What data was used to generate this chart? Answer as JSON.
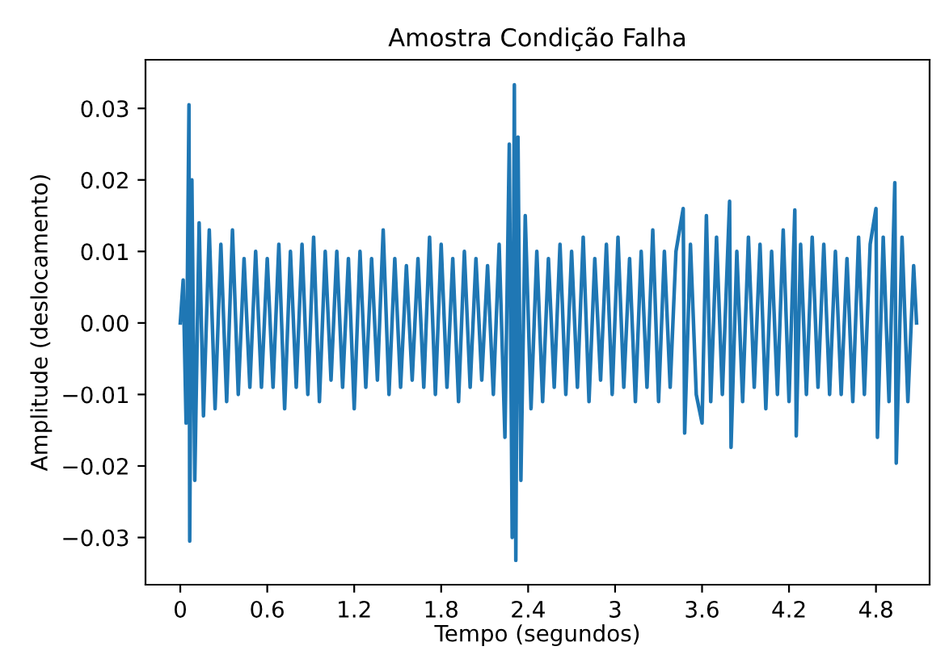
{
  "chart_data": {
    "type": "line",
    "title": "Amostra Condição Falha",
    "xlabel": "Tempo (segundos)",
    "ylabel": "Amplitude (deslocamento)",
    "xlim": [
      -0.24,
      5.17
    ],
    "ylim": [
      -0.0366,
      0.0368
    ],
    "xticks": [
      0,
      0.6,
      1.2,
      1.8,
      2.4,
      3,
      3.6,
      4.2,
      4.8
    ],
    "yticks": [
      {
        "value": -0.03,
        "label": "−0.03"
      },
      {
        "value": -0.02,
        "label": "−0.02"
      },
      {
        "value": -0.01,
        "label": "−0.01"
      },
      {
        "value": 0,
        "label": "0.00"
      },
      {
        "value": 0.01,
        "label": "0.01"
      },
      {
        "value": 0.02,
        "label": "0.02"
      },
      {
        "value": 0.03,
        "label": "0.03"
      }
    ],
    "grid": false,
    "legend": false,
    "marker": "none",
    "line_style": "solid",
    "series": [
      {
        "color": "#1f77b4",
        "x": [
          0,
          0.02,
          0.04,
          0.06,
          0.065,
          0.08,
          0.1,
          0.13,
          0.16,
          0.2,
          0.24,
          0.28,
          0.32,
          0.36,
          0.4,
          0.44,
          0.48,
          0.52,
          0.56,
          0.6,
          0.64,
          0.68,
          0.72,
          0.76,
          0.8,
          0.84,
          0.88,
          0.92,
          0.96,
          1.0,
          1.04,
          1.08,
          1.12,
          1.16,
          1.2,
          1.24,
          1.28,
          1.32,
          1.36,
          1.4,
          1.44,
          1.48,
          1.52,
          1.56,
          1.6,
          1.64,
          1.68,
          1.72,
          1.76,
          1.8,
          1.84,
          1.88,
          1.92,
          1.96,
          2.0,
          2.04,
          2.08,
          2.12,
          2.16,
          2.2,
          2.24,
          2.27,
          2.29,
          2.305,
          2.315,
          2.33,
          2.35,
          2.38,
          2.42,
          2.46,
          2.5,
          2.54,
          2.58,
          2.62,
          2.66,
          2.7,
          2.74,
          2.78,
          2.82,
          2.86,
          2.9,
          2.94,
          2.98,
          3.02,
          3.06,
          3.1,
          3.14,
          3.18,
          3.22,
          3.26,
          3.3,
          3.34,
          3.38,
          3.42,
          3.47,
          3.48,
          3.52,
          3.56,
          3.6,
          3.63,
          3.66,
          3.7,
          3.74,
          3.79,
          3.8,
          3.84,
          3.88,
          3.92,
          3.96,
          4.0,
          4.04,
          4.08,
          4.12,
          4.16,
          4.2,
          4.24,
          4.25,
          4.28,
          4.32,
          4.36,
          4.4,
          4.44,
          4.48,
          4.52,
          4.56,
          4.6,
          4.64,
          4.68,
          4.72,
          4.76,
          4.8,
          4.81,
          4.85,
          4.89,
          4.93,
          4.94,
          4.98,
          5.02,
          5.06,
          5.08
        ],
        "values": [
          0.0,
          0.006,
          -0.014,
          0.0305,
          -0.0305,
          0.02,
          -0.022,
          0.014,
          -0.013,
          0.013,
          -0.012,
          0.011,
          -0.011,
          0.013,
          -0.01,
          0.009,
          -0.009,
          0.01,
          -0.009,
          0.009,
          -0.009,
          0.011,
          -0.012,
          0.01,
          -0.009,
          0.011,
          -0.01,
          0.012,
          -0.011,
          0.01,
          -0.008,
          0.01,
          -0.009,
          0.009,
          -0.012,
          0.01,
          -0.009,
          0.009,
          -0.008,
          0.013,
          -0.01,
          0.009,
          -0.009,
          0.008,
          -0.008,
          0.009,
          -0.009,
          0.012,
          -0.01,
          0.011,
          -0.009,
          0.009,
          -0.011,
          0.01,
          -0.009,
          0.009,
          -0.008,
          0.008,
          -0.01,
          0.011,
          -0.016,
          0.025,
          -0.03,
          0.0333,
          -0.0332,
          0.026,
          -0.022,
          0.015,
          -0.012,
          0.01,
          -0.011,
          0.009,
          -0.009,
          0.011,
          -0.01,
          0.01,
          -0.009,
          0.012,
          -0.011,
          0.009,
          -0.008,
          0.011,
          -0.01,
          0.012,
          -0.009,
          0.009,
          -0.011,
          0.01,
          -0.009,
          0.013,
          -0.011,
          0.01,
          -0.009,
          0.01,
          0.016,
          -0.0154,
          0.011,
          -0.01,
          -0.014,
          0.015,
          -0.011,
          0.012,
          -0.01,
          0.017,
          -0.0174,
          0.01,
          -0.011,
          0.012,
          -0.009,
          0.011,
          -0.012,
          0.01,
          -0.01,
          0.013,
          -0.011,
          0.0158,
          -0.0158,
          0.011,
          -0.01,
          0.012,
          -0.009,
          0.011,
          -0.01,
          0.01,
          -0.01,
          0.009,
          -0.011,
          0.012,
          -0.01,
          0.011,
          0.016,
          -0.016,
          0.012,
          -0.011,
          0.0196,
          -0.0196,
          0.012,
          -0.011,
          0.008,
          0.0
        ]
      }
    ]
  }
}
